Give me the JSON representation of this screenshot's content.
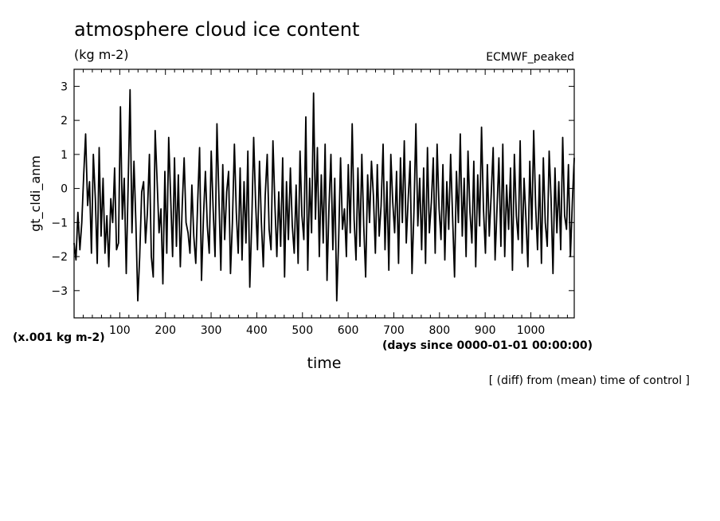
{
  "chart_data": {
    "type": "line",
    "title": "atmosphere cloud ice content",
    "subtitle": "(kg m-2)",
    "annotation_right": "ECMWF_peaked",
    "ylabel": "gt_cldi_anm",
    "yunit_note": "(x.001 kg m-2)",
    "xlabel": "time",
    "xunit_note": "(days since 0000-01-01 00:00:00)",
    "footnote": "[ (diff) from (mean) time of control ]",
    "xlim": [
      0,
      1095
    ],
    "ylim": [
      -3.8,
      3.5
    ],
    "x_ticks": [
      100,
      200,
      300,
      400,
      500,
      600,
      700,
      800,
      900,
      1000
    ],
    "y_ticks": [
      3,
      2,
      1,
      0,
      -1,
      -2,
      -3
    ],
    "x_tick_labels": [
      "100",
      "200",
      "300",
      "400",
      "500",
      "600",
      "700",
      "800",
      "900",
      "1000"
    ],
    "y_tick_labels": [
      "3",
      "2",
      "1",
      "0",
      "−1",
      "−2",
      "−3"
    ],
    "grid": false,
    "series": [
      {
        "color": "#000000",
        "values": [
          -1.6,
          -2.1,
          -0.7,
          -1.8,
          -1.0,
          0.4,
          1.6,
          -0.5,
          0.2,
          -1.9,
          1.0,
          -0.3,
          -2.2,
          1.2,
          -1.4,
          0.3,
          -1.9,
          -0.8,
          -2.3,
          -0.3,
          -1.0,
          0.6,
          -1.8,
          -1.6,
          2.4,
          -0.9,
          0.3,
          -2.5,
          0.1,
          2.9,
          -1.3,
          0.8,
          -1.0,
          -3.3,
          -2.0,
          -0.1,
          0.2,
          -1.6,
          -0.7,
          1.0,
          -2.0,
          -2.6,
          1.7,
          0.2,
          -1.3,
          -0.6,
          -2.8,
          0.5,
          -1.9,
          1.5,
          -0.2,
          -2.0,
          0.9,
          -1.7,
          0.4,
          -2.3,
          -0.5,
          0.9,
          -1.0,
          -1.3,
          -1.9,
          0.1,
          -1.4,
          -2.2,
          -0.4,
          1.2,
          -2.7,
          -0.8,
          0.5,
          -1.1,
          -1.9,
          1.1,
          -0.6,
          -2.0,
          1.9,
          -0.3,
          -2.4,
          0.7,
          -1.5,
          -0.1,
          0.5,
          -2.5,
          -1.0,
          1.3,
          -0.7,
          -1.9,
          0.6,
          -2.1,
          0.2,
          -1.6,
          1.1,
          -2.9,
          -1.0,
          1.5,
          -0.4,
          -1.8,
          0.8,
          -1.0,
          -2.3,
          -0.2,
          1.0,
          -1.2,
          -1.8,
          1.4,
          -0.5,
          -2.0,
          -0.1,
          -1.7,
          0.9,
          -2.6,
          0.2,
          -1.5,
          0.6,
          -1.1,
          -1.9,
          0.1,
          -2.2,
          1.1,
          -0.8,
          -1.5,
          2.1,
          -2.4,
          0.3,
          -1.3,
          2.8,
          -0.9,
          1.2,
          -2.0,
          0.4,
          -1.6,
          1.3,
          -2.7,
          -0.5,
          1.0,
          -1.8,
          0.3,
          -3.3,
          -1.5,
          0.9,
          -1.2,
          -0.6,
          -2.0,
          0.7,
          -1.3,
          1.9,
          -0.9,
          -2.1,
          0.6,
          -1.7,
          1.0,
          -1.1,
          -2.6,
          0.4,
          -1.0,
          0.8,
          -0.2,
          -1.9,
          0.7,
          -1.4,
          -0.5,
          1.3,
          -1.8,
          0.2,
          -2.4,
          1.0,
          -0.4,
          -1.3,
          0.5,
          -2.2,
          0.9,
          -1.0,
          1.4,
          -1.6,
          -0.3,
          0.8,
          -2.5,
          -0.7,
          1.9,
          -1.1,
          0.3,
          -1.8,
          0.6,
          -2.2,
          1.2,
          -1.3,
          -0.4,
          0.9,
          -1.9,
          1.3,
          -0.6,
          -1.5,
          0.7,
          -2.1,
          0.2,
          -1.2,
          1.0,
          -0.8,
          -2.6,
          0.5,
          -1.0,
          1.6,
          -1.4,
          0.3,
          -2.0,
          1.1,
          -0.7,
          -1.6,
          0.8,
          -2.3,
          0.4,
          -1.1,
          1.8,
          -0.6,
          -1.9,
          0.7,
          -1.4,
          -0.2,
          1.2,
          -2.1,
          -0.6,
          0.9,
          -1.7,
          1.3,
          -2.0,
          0.1,
          -1.2,
          0.6,
          -2.4,
          1.0,
          -0.8,
          -1.5,
          1.4,
          -1.9,
          0.3,
          -0.9,
          -2.3,
          0.8,
          -1.2,
          1.7,
          -0.5,
          -1.8,
          0.4,
          -2.2,
          0.9,
          -1.0,
          -1.7,
          1.1,
          -0.3,
          -2.5,
          0.6,
          -1.3,
          0.2,
          -1.8,
          1.5,
          -0.8,
          -1.2,
          0.7,
          -2.0,
          -0.4,
          0.9
        ]
      }
    ]
  }
}
